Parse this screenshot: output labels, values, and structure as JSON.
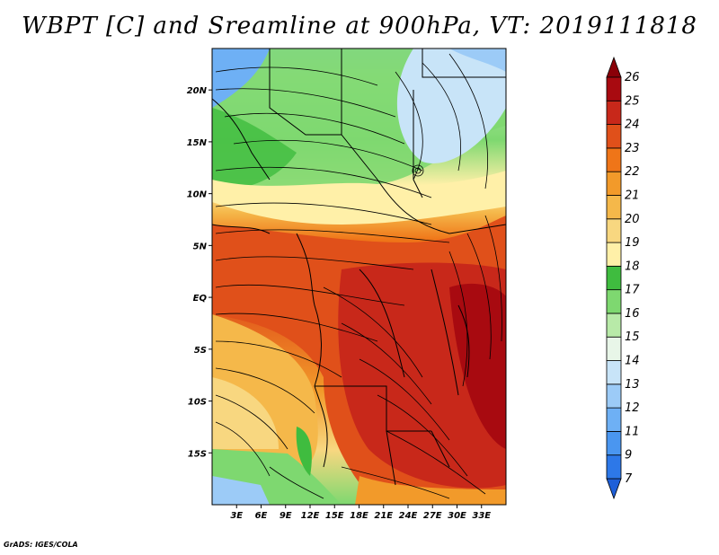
{
  "title": "WBPT [C] and Sreamline at 900hPa, VT: 2019111818",
  "credit": "GrADS: IGES/COLA",
  "map": {
    "lon_range": [
      0,
      36
    ],
    "lat_range": [
      -20,
      24
    ],
    "lon_ticks": [
      "3E",
      "6E",
      "9E",
      "12E",
      "15E",
      "18E",
      "21E",
      "24E",
      "27E",
      "30E",
      "33E"
    ],
    "lon_values": [
      3,
      6,
      9,
      12,
      15,
      18,
      21,
      24,
      27,
      30,
      33
    ],
    "lat_ticks": [
      "20N",
      "15N",
      "10N",
      "5N",
      "EQ",
      "5S",
      "10S",
      "15S"
    ],
    "lat_values": [
      20,
      15,
      10,
      5,
      0,
      -5,
      -10,
      -15
    ]
  },
  "colorbar": {
    "labels": [
      "7",
      "9",
      "11",
      "12",
      "13",
      "14",
      "15",
      "16",
      "17",
      "18",
      "19",
      "20",
      "21",
      "22",
      "23",
      "24",
      "25",
      "26"
    ],
    "colors": [
      "#1e5fd8",
      "#2d78e8",
      "#4a96f0",
      "#6eb0f5",
      "#9ccbf7",
      "#c8e4f8",
      "#e8f6e8",
      "#b8eaa8",
      "#7ed870",
      "#3fbc3f",
      "#fff0a8",
      "#f8d780",
      "#f5b84a",
      "#f29a2a",
      "#ef7518",
      "#e0501a",
      "#c8281a",
      "#a80a10",
      "#8a0008"
    ]
  }
}
